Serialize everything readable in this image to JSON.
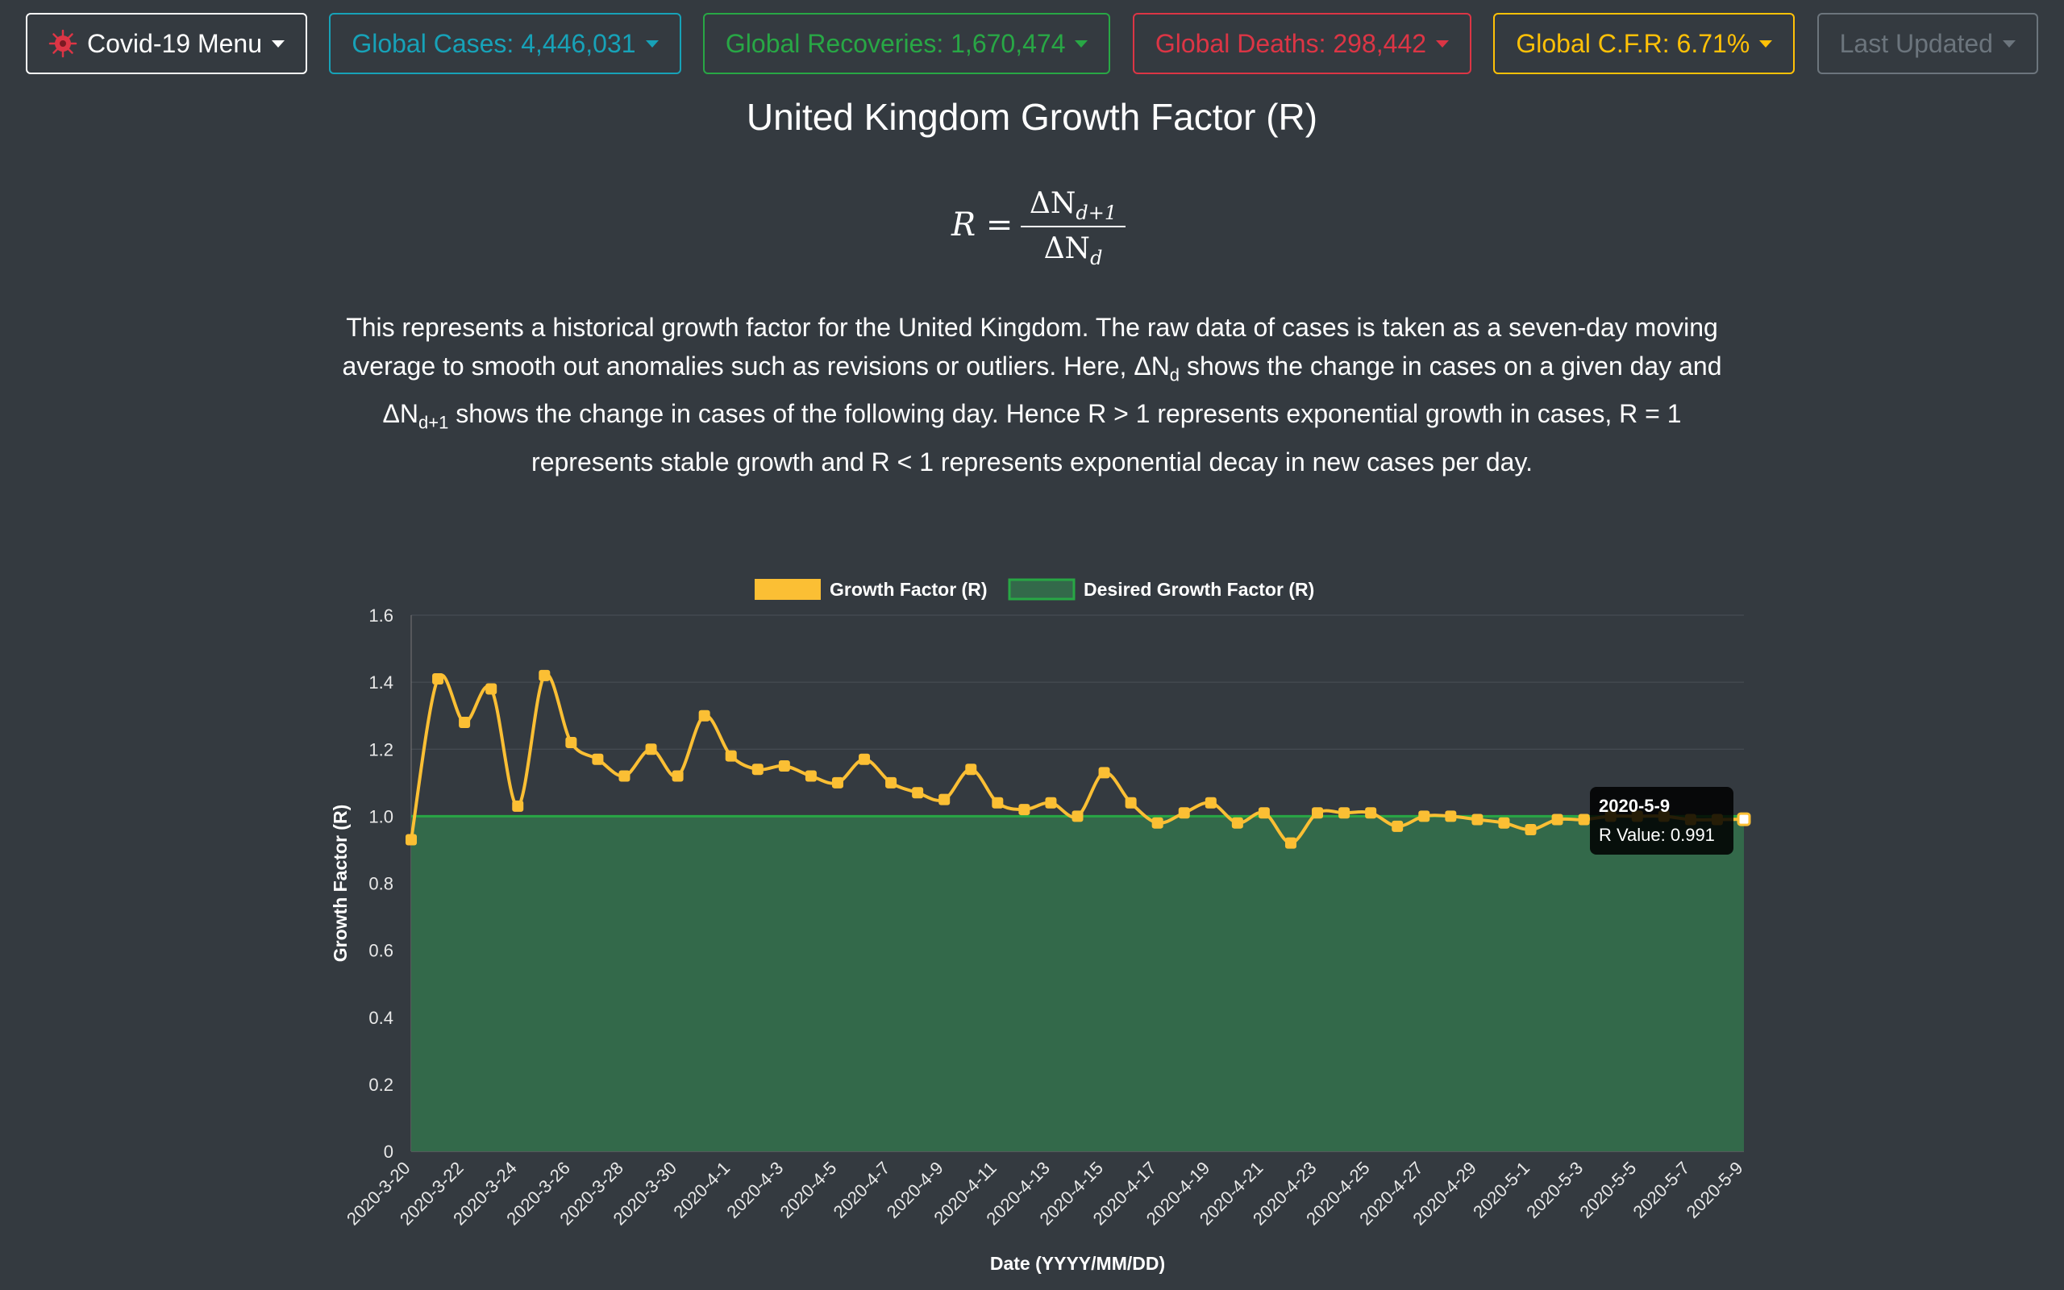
{
  "nav": {
    "menu_label": "Covid-19 Menu",
    "cases_label": "Global Cases: 4,446,031",
    "recoveries_label": "Global Recoveries: 1,670,474",
    "deaths_label": "Global Deaths: 298,442",
    "cfr_label": "Global C.F.R: 6.71%",
    "updated_label": "Last Updated",
    "icons": {
      "menu": "virus-icon",
      "dropdown": "caret-down-icon"
    },
    "colors": {
      "cases": "#17a2b8",
      "recoveries": "#28a745",
      "deaths": "#dc3545",
      "cfr": "#ffc107",
      "updated": "#6c757d"
    }
  },
  "page": {
    "title": "United Kingdom Growth Factor (R)",
    "formula": {
      "lhs": "R =",
      "numerator": "ΔN",
      "numerator_sub": "d+1",
      "denominator": "ΔN",
      "denominator_sub": "d"
    },
    "description": {
      "p1": "This represents a historical growth factor for the United Kingdom. The raw data of cases is taken as a seven-day moving average to smooth out anomalies such as revisions or outliers. Here, ΔN",
      "sub1": "d",
      "p2": " shows the change in cases on a given day and ΔN",
      "sub2": "d+1",
      "p3": " shows the change in cases of the following day. Hence R > 1 represents exponential growth in cases, R = 1 represents stable growth and R < 1 represents exponential decay in new cases per day."
    }
  },
  "chart_data": {
    "type": "line",
    "xlabel": "Date (YYYY/MM/DD)",
    "ylabel": "Growth Factor (R)",
    "ylim": [
      0,
      1.6
    ],
    "yticks": [
      0,
      0.2,
      0.4,
      0.6,
      0.8,
      1.0,
      1.2,
      1.4,
      1.6
    ],
    "ytick_labels": [
      "0",
      "0.2",
      "0.4",
      "0.6",
      "0.8",
      "1.0",
      "1.2",
      "1.4",
      "1.6"
    ],
    "grid": true,
    "legend_position": "top",
    "categories": [
      "2020-3-20",
      "2020-3-21",
      "2020-3-22",
      "2020-3-23",
      "2020-3-24",
      "2020-3-25",
      "2020-3-26",
      "2020-3-27",
      "2020-3-28",
      "2020-3-29",
      "2020-3-30",
      "2020-3-31",
      "2020-4-1",
      "2020-4-2",
      "2020-4-3",
      "2020-4-4",
      "2020-4-5",
      "2020-4-6",
      "2020-4-7",
      "2020-4-8",
      "2020-4-9",
      "2020-4-10",
      "2020-4-11",
      "2020-4-12",
      "2020-4-13",
      "2020-4-14",
      "2020-4-15",
      "2020-4-16",
      "2020-4-17",
      "2020-4-18",
      "2020-4-19",
      "2020-4-20",
      "2020-4-21",
      "2020-4-22",
      "2020-4-23",
      "2020-4-24",
      "2020-4-25",
      "2020-4-26",
      "2020-4-27",
      "2020-4-28",
      "2020-4-29",
      "2020-4-30",
      "2020-5-1",
      "2020-5-2",
      "2020-5-3",
      "2020-5-4",
      "2020-5-5",
      "2020-5-6",
      "2020-5-7",
      "2020-5-8",
      "2020-5-9"
    ],
    "tick_labels": [
      "2020-3-20",
      "2020-3-22",
      "2020-3-24",
      "2020-3-26",
      "2020-3-28",
      "2020-3-30",
      "2020-4-1",
      "2020-4-3",
      "2020-4-5",
      "2020-4-7",
      "2020-4-9",
      "2020-4-11",
      "2020-4-13",
      "2020-4-15",
      "2020-4-17",
      "2020-4-19",
      "2020-4-21",
      "2020-4-23",
      "2020-4-25",
      "2020-4-27",
      "2020-4-29",
      "2020-5-1",
      "2020-5-3",
      "2020-5-5",
      "2020-5-7",
      "2020-5-9"
    ],
    "series": [
      {
        "name": "Growth Factor (R)",
        "color": "#fbbf34",
        "kind": "line",
        "values": [
          0.93,
          1.41,
          1.28,
          1.38,
          1.03,
          1.42,
          1.22,
          1.17,
          1.12,
          1.2,
          1.12,
          1.3,
          1.18,
          1.14,
          1.15,
          1.12,
          1.1,
          1.17,
          1.1,
          1.07,
          1.05,
          1.14,
          1.04,
          1.02,
          1.04,
          1.0,
          1.13,
          1.04,
          0.98,
          1.01,
          1.04,
          0.98,
          1.01,
          0.92,
          1.01,
          1.01,
          1.01,
          0.97,
          1.0,
          1.0,
          0.99,
          0.98,
          0.96,
          0.99,
          0.99,
          1.0,
          1.0,
          1.0,
          0.99,
          0.99,
          0.991
        ]
      },
      {
        "name": "Desired Growth Factor (R)",
        "color": "#28a745",
        "fill": "#33694a",
        "kind": "area",
        "values": [
          1,
          1,
          1,
          1,
          1,
          1,
          1,
          1,
          1,
          1,
          1,
          1,
          1,
          1,
          1,
          1,
          1,
          1,
          1,
          1,
          1,
          1,
          1,
          1,
          1,
          1,
          1,
          1,
          1,
          1,
          1,
          1,
          1,
          1,
          1,
          1,
          1,
          1,
          1,
          1,
          1,
          1,
          1,
          1,
          1,
          1,
          1,
          1,
          1,
          1,
          1
        ]
      }
    ],
    "tooltip": {
      "title": "2020-5-9",
      "label": "R Value: 0.991"
    }
  }
}
